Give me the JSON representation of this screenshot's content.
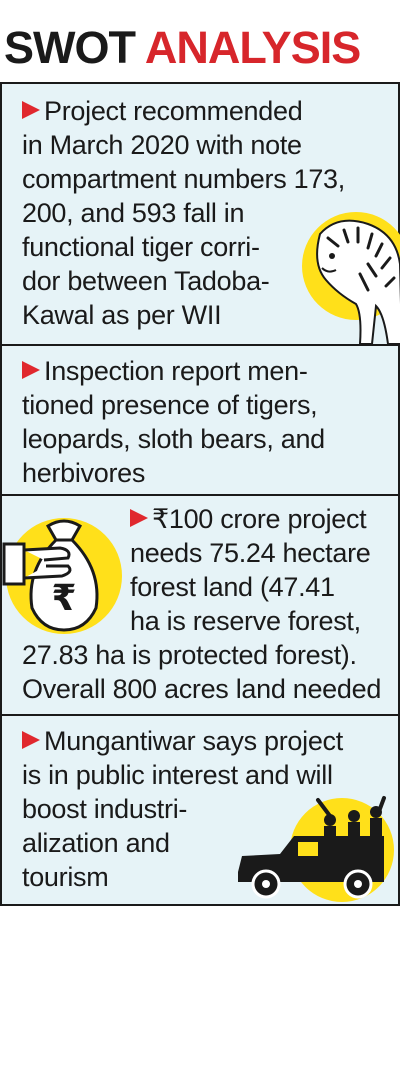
{
  "header": {
    "title_word1": "SWOT",
    "title_word2": "ANALYSIS"
  },
  "colors": {
    "accent_red": "#d7262b",
    "card_bg": "#e6f3f7",
    "highlight_yellow": "#ffe01a",
    "ink": "#1a1a1a"
  },
  "icons": [
    "tiger-illustration",
    "money-bag-icon",
    "jeep-safari-icon"
  ],
  "points": [
    {
      "lines": [
        "Project recommended",
        "in March 2020 with note",
        "compartment numbers 173,",
        "200, and 593 fall in",
        "functional tiger corri-",
        "dor between Tadoba-",
        "Kawal as per WII"
      ]
    },
    {
      "lines": [
        "Inspection report men-",
        "tioned presence of tigers,",
        "leopards, sloth bears, and",
        "herbivores"
      ]
    },
    {
      "lines": [
        "₹100 crore project",
        "needs 75.24 hectare",
        "forest land (47.41",
        "ha is reserve forest,",
        "27.83 ha is protected forest).",
        "Overall 800 acres land needed"
      ]
    },
    {
      "lines": [
        "Mungantiwar says project",
        "is in public interest and will",
        "boost industri-",
        "alization and",
        "tourism"
      ]
    }
  ]
}
